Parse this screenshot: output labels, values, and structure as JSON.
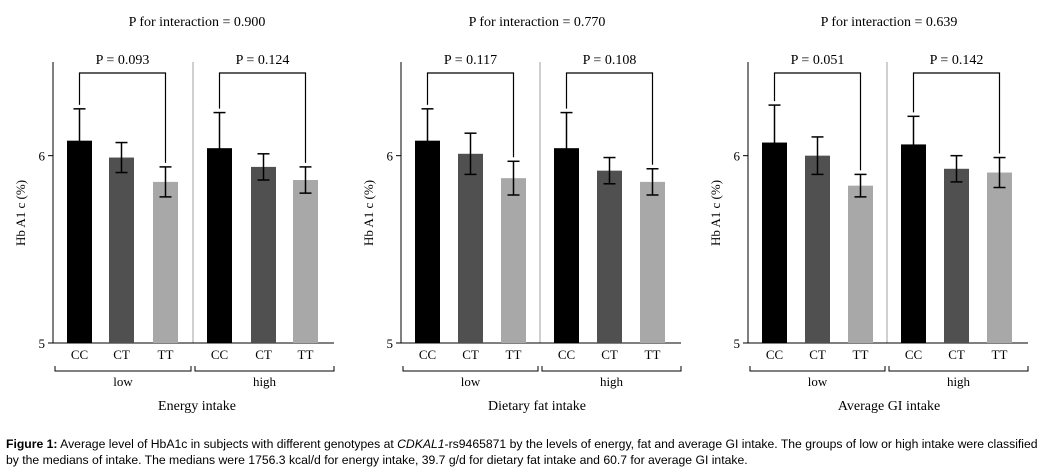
{
  "chart_data": [
    {
      "type": "bar",
      "title": "P for interaction = 0.900",
      "xlabel": "Energy intake",
      "ylabel": "Hb A1 c (%)",
      "ylim": [
        5,
        6.5
      ],
      "yticks": [
        "5",
        "6"
      ],
      "groups": [
        {
          "label": "low",
          "p_label": "P = 0.093",
          "categories": [
            "CC",
            "CT",
            "TT"
          ],
          "values": [
            6.08,
            5.99,
            5.86
          ],
          "errors": [
            0.17,
            0.08,
            0.08
          ]
        },
        {
          "label": "high",
          "p_label": "P = 0.124",
          "categories": [
            "CC",
            "CT",
            "TT"
          ],
          "values": [
            6.04,
            5.94,
            5.87
          ],
          "errors": [
            0.19,
            0.07,
            0.07
          ]
        }
      ]
    },
    {
      "type": "bar",
      "title": "P for interaction = 0.770",
      "xlabel": "Dietary fat intake",
      "ylabel": "Hb A1 c (%)",
      "ylim": [
        5,
        6.5
      ],
      "yticks": [
        "5",
        "6"
      ],
      "groups": [
        {
          "label": "low",
          "p_label": "P = 0.117",
          "categories": [
            "CC",
            "CT",
            "TT"
          ],
          "values": [
            6.08,
            6.01,
            5.88
          ],
          "errors": [
            0.17,
            0.11,
            0.09
          ]
        },
        {
          "label": "high",
          "p_label": "P = 0.108",
          "categories": [
            "CC",
            "CT",
            "TT"
          ],
          "values": [
            6.04,
            5.92,
            5.86
          ],
          "errors": [
            0.19,
            0.07,
            0.07
          ]
        }
      ]
    },
    {
      "type": "bar",
      "title": "P for interaction = 0.639",
      "xlabel": "Average GI intake",
      "ylabel": "Hb A1 c (%)",
      "ylim": [
        5,
        6.5
      ],
      "yticks": [
        "5",
        "6"
      ],
      "groups": [
        {
          "label": "low",
          "p_label": "P = 0.051",
          "categories": [
            "CC",
            "CT",
            "TT"
          ],
          "values": [
            6.07,
            6.0,
            5.84
          ],
          "errors": [
            0.2,
            0.1,
            0.06
          ]
        },
        {
          "label": "high",
          "p_label": "P = 0.142",
          "categories": [
            "CC",
            "CT",
            "TT"
          ],
          "values": [
            6.06,
            5.93,
            5.91
          ],
          "errors": [
            0.15,
            0.07,
            0.08
          ]
        }
      ]
    }
  ],
  "colors": {
    "CC": "#000000",
    "CT": "#505050",
    "TT": "#a8a8a8",
    "divider": "#b0b0b0"
  },
  "caption": {
    "label": "Figure 1:",
    "text_before": " Average level of HbA1c in subjects with different genotypes at ",
    "gene": "CDKAL1",
    "text_after": "-rs9465871 by the levels of energy, fat and average GI intake. The groups of low or high intake were classified by the medians of intake. The medians were 1756.3 kcal/d for energy intake, 39.7 g/d for dietary fat intake and 60.7 for average GI intake."
  }
}
